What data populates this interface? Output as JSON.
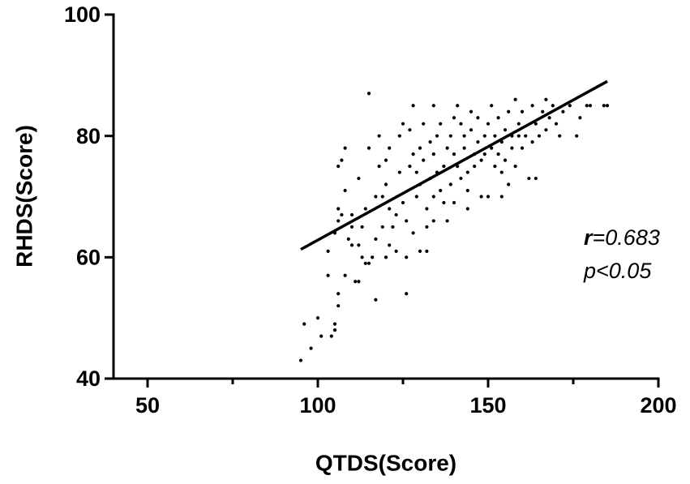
{
  "chart_data": {
    "type": "scatter",
    "xlabel": "QTDS(Score)",
    "ylabel": "RHDS(Score)",
    "xlim": [
      40,
      200
    ],
    "ylim": [
      40,
      100
    ],
    "xticks": [
      50,
      100,
      150,
      200
    ],
    "xminorticks": [
      75,
      125,
      175
    ],
    "yticks": [
      40,
      60,
      80,
      100
    ],
    "series": [
      {
        "color": "#000000",
        "x": [
          95,
          96,
          98,
          100,
          101,
          104,
          105,
          105,
          106,
          106,
          103,
          103,
          105,
          106,
          106,
          107,
          108,
          109,
          108,
          106,
          107,
          108,
          110,
          110,
          111,
          112,
          112,
          113,
          113,
          114,
          114,
          115,
          115,
          115,
          116,
          117,
          117,
          117,
          118,
          118,
          119,
          120,
          120,
          120,
          121,
          121,
          122,
          123,
          123,
          124,
          124,
          125,
          125,
          126,
          126,
          127,
          127,
          128,
          128,
          129,
          129,
          130,
          130,
          130,
          131,
          131,
          132,
          132,
          132,
          133,
          133,
          134,
          134,
          134,
          135,
          135,
          136,
          136,
          137,
          137,
          138,
          138,
          139,
          139,
          140,
          140,
          140,
          141,
          141,
          142,
          142,
          143,
          143,
          144,
          144,
          145,
          145,
          146,
          146,
          147,
          147,
          148,
          148,
          149,
          149,
          150,
          150,
          151,
          151,
          152,
          152,
          153,
          153,
          154,
          154,
          155,
          155,
          156,
          156,
          157,
          157,
          158,
          158,
          159,
          159,
          160,
          160,
          161,
          162,
          163,
          163,
          164,
          164,
          165,
          166,
          167,
          167,
          168,
          169,
          170,
          171,
          172,
          174,
          176,
          177,
          179,
          180,
          184,
          185,
          126,
          119,
          121,
          110,
          112,
          128,
          144,
          154,
          134
        ],
        "values": [
          43,
          49,
          45,
          50,
          47,
          47,
          48,
          49,
          52,
          54,
          57,
          61,
          64,
          66,
          68,
          67,
          57,
          63,
          71,
          75,
          76,
          78,
          65,
          62,
          56,
          56,
          73,
          65,
          60,
          59,
          68,
          59,
          87,
          78,
          60,
          53,
          63,
          70,
          75,
          80,
          65,
          60,
          76,
          72,
          62,
          78,
          65,
          61,
          67,
          74,
          80,
          82,
          69,
          54,
          66,
          75,
          81,
          64,
          77,
          70,
          74,
          61,
          78,
          72,
          76,
          82,
          65,
          61,
          68,
          79,
          73,
          85,
          70,
          77,
          74,
          80,
          82,
          71,
          75,
          69,
          66,
          78,
          80,
          72,
          83,
          77,
          69,
          85,
          75,
          82,
          73,
          78,
          80,
          74,
          71,
          84,
          81,
          77,
          75,
          79,
          83,
          76,
          70,
          80,
          77,
          82,
          70,
          85,
          78,
          75,
          80,
          77,
          83,
          79,
          74,
          81,
          76,
          84,
          72,
          80,
          78,
          86,
          75,
          82,
          80,
          78,
          84,
          80,
          73,
          85,
          79,
          82,
          73,
          80,
          84,
          86,
          81,
          83,
          85,
          82,
          80,
          84,
          85,
          80,
          83,
          85,
          85,
          85,
          85,
          60,
          70,
          68,
          67,
          62,
          85,
          68,
          70,
          66
        ]
      }
    ],
    "fit_line": {
      "x": [
        95,
        185
      ],
      "y": [
        61.3,
        89
      ],
      "color": "#000000"
    },
    "annotation_r": {
      "symbol": "r",
      "value": "=0.683"
    },
    "annotation_p": "p<0.05"
  }
}
